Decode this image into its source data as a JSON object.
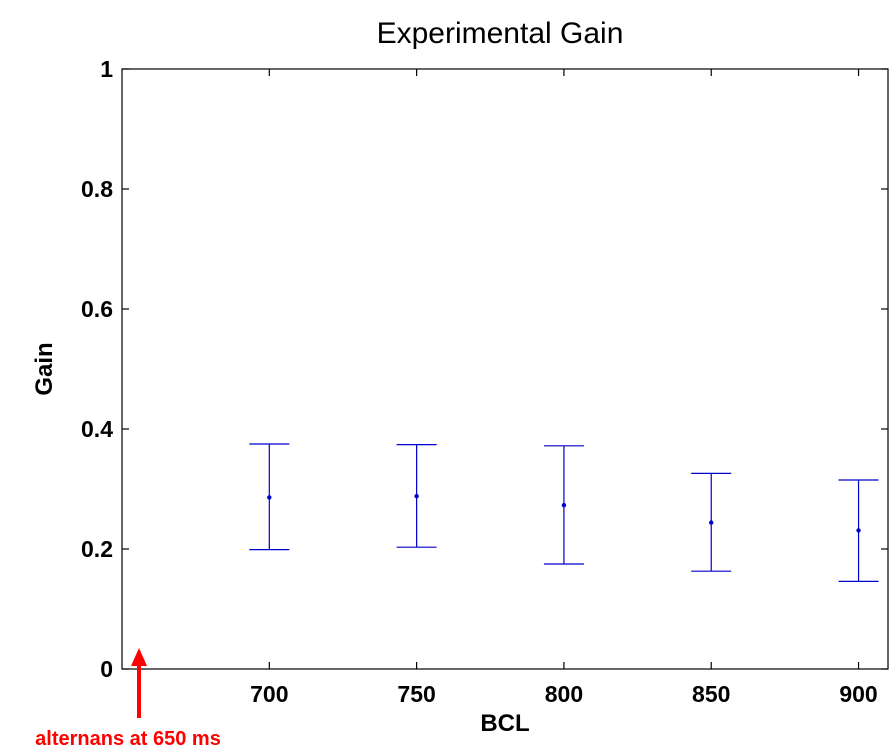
{
  "chart_data": {
    "type": "scatter",
    "title": "Experimental Gain",
    "xlabel": "BCL",
    "ylabel": "Gain",
    "xlim": [
      650,
      910
    ],
    "ylim": [
      0,
      1
    ],
    "xticks": [
      700,
      750,
      800,
      850,
      900
    ],
    "yticks": [
      0,
      0.2,
      0.4,
      0.6,
      0.8,
      1
    ],
    "ytick_labels": [
      "0",
      "0.2",
      "0.4",
      "0.6",
      "0.8",
      "1"
    ],
    "grid": false,
    "series": [
      {
        "color": "#0000cc",
        "points": [
          {
            "x": 700,
            "y": 0.286,
            "ylow": 0.199,
            "yhigh": 0.375
          },
          {
            "x": 750,
            "y": 0.288,
            "ylow": 0.203,
            "yhigh": 0.374
          },
          {
            "x": 800,
            "y": 0.273,
            "ylow": 0.175,
            "yhigh": 0.372
          },
          {
            "x": 850,
            "y": 0.244,
            "ylow": 0.163,
            "yhigh": 0.326
          },
          {
            "x": 900,
            "y": 0.231,
            "ylow": 0.146,
            "yhigh": 0.315
          }
        ]
      }
    ],
    "annotation": {
      "text": "alternans at 650 ms",
      "x": 650,
      "color": "#ff0000"
    }
  }
}
